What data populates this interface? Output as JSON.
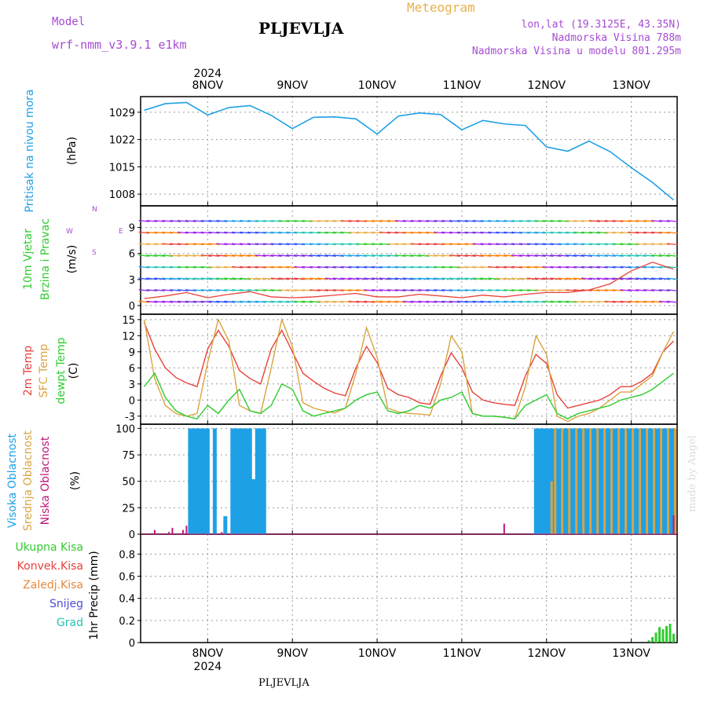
{
  "header": {
    "model_label": "Model",
    "model_name": "wrf-nmm_v3.9.1  e1km",
    "station": "PLJEVLJA",
    "product": "Meteogram",
    "lonlat": "lon,lat (19.3125E, 43.35N)",
    "elevation": "Nadmorska Visina 788m",
    "model_elevation": "Nadmorska Visina u modelu 801.295m",
    "year": "2024",
    "footer_station": "PLJEVLJA",
    "watermark": "made by Angel"
  },
  "colors": {
    "pressure": "#1ea0e6",
    "temp2m": "#e8413c",
    "sfc_temp": "#d9a441",
    "dewpt": "#2ecc2e",
    "cloud_high": "#1ea0e6",
    "cloud_mid": "#d9a441",
    "cloud_low": "#c0157a",
    "precip": "#2ecc2e",
    "title_purple": "#a64bd4",
    "meteogram_orange": "#e8b04a"
  },
  "chart_data": [
    {
      "type": "line",
      "panel": "pressure",
      "ylabel": [
        "Pritisak  na  nivou  mora",
        "(hPa)"
      ],
      "yticks": [
        1008,
        1015,
        1022,
        1029
      ],
      "ylim": [
        1005,
        1033
      ],
      "x_days": [
        "8NOV",
        "9NOV",
        "10NOV",
        "11NOV",
        "12NOV",
        "13NOV"
      ],
      "x_hours": [
        -6,
        0,
        6,
        12,
        18,
        24,
        30,
        36,
        42,
        48,
        54,
        60,
        66,
        72,
        78,
        84,
        90,
        96,
        102,
        108,
        114,
        120,
        126,
        132,
        138,
        144
      ],
      "series": [
        {
          "values": [
            1029.5,
            1031.2,
            1031.5,
            1028.3,
            1030.2,
            1030.7,
            1028.2,
            1024.8,
            1027.7,
            1027.8,
            1027.3,
            1023.4,
            1028.0,
            1028.8,
            1028.4,
            1024.5,
            1026.9,
            1026.0,
            1025.6,
            1020.1,
            1019.0,
            1021.6,
            1018.9,
            1014.8,
            1011.0,
            1006.5
          ]
        }
      ],
      "grid": true
    },
    {
      "type": "line",
      "panel": "wind",
      "ylabel": [
        "10m  Vjetar",
        "Brzina  i  Pravac",
        "(m/s)"
      ],
      "compass": [
        "N",
        "E",
        "W",
        "S"
      ],
      "yticks": [
        0,
        3,
        6,
        9
      ],
      "ylim": [
        -1,
        11.5
      ],
      "x_hours": [
        -6,
        0,
        6,
        12,
        18,
        24,
        30,
        36,
        42,
        48,
        54,
        60,
        66,
        72,
        78,
        84,
        90,
        96,
        102,
        108,
        114,
        120,
        126,
        132,
        138,
        144
      ],
      "series": [
        {
          "values": [
            0.8,
            1.1,
            1.5,
            0.9,
            1.3,
            1.6,
            1.0,
            0.9,
            1.0,
            1.2,
            1.4,
            1.0,
            1.0,
            1.3,
            1.1,
            0.9,
            1.2,
            1.0,
            1.3,
            1.5,
            1.5,
            1.8,
            2.5,
            4.0,
            5.0,
            4.2
          ]
        }
      ],
      "grid": true
    },
    {
      "type": "line",
      "panel": "temperature",
      "ylabel": [
        "2m  Temp",
        "SFC  Temp",
        "dewpt  Temp",
        "(C)"
      ],
      "yticks": [
        -3,
        0,
        3,
        6,
        9,
        12,
        15
      ],
      "ylim": [
        -4.5,
        16
      ],
      "x_hours": [
        -6,
        -3,
        0,
        3,
        6,
        9,
        12,
        15,
        18,
        21,
        24,
        27,
        30,
        33,
        36,
        39,
        42,
        45,
        48,
        51,
        54,
        57,
        60,
        63,
        66,
        69,
        72,
        75,
        78,
        81,
        84,
        87,
        90,
        93,
        96,
        99,
        102,
        105,
        108,
        111,
        114,
        117,
        120,
        123,
        126,
        129,
        132,
        135,
        138,
        141,
        144
      ],
      "series": [
        {
          "name": "2m Temp",
          "values": [
            14.5,
            9.5,
            6,
            4.2,
            3.2,
            2.5,
            9.5,
            13,
            10,
            5.5,
            4,
            3,
            9.5,
            13,
            9,
            5,
            3.5,
            2.2,
            1.3,
            0.8,
            6,
            10,
            7,
            2.2,
            1,
            0.5,
            -0.5,
            -0.8,
            4.5,
            8.8,
            6,
            1.5,
            0,
            -0.5,
            -0.8,
            -1,
            4.5,
            8.5,
            6.8,
            1,
            -1.5,
            -1,
            -0.5,
            0,
            1,
            2.5,
            2.5,
            3.5,
            5,
            9,
            11
          ]
        },
        {
          "name": "SFC Temp",
          "values": [
            15,
            4,
            -1,
            -2.5,
            -3,
            -2.5,
            7,
            15,
            11,
            -1,
            -2,
            -2.5,
            6,
            15,
            10,
            -0.5,
            -1.5,
            -2,
            -2.4,
            -1.5,
            5,
            13.5,
            8,
            -1.5,
            -2.2,
            -2.5,
            -2.6,
            -2.8,
            3,
            12,
            9,
            -2.5,
            -3,
            -3,
            -3.2,
            -3.5,
            2.5,
            12,
            8.5,
            -3,
            -4,
            -3,
            -2.5,
            -1.5,
            0,
            1.5,
            1.5,
            3,
            4.5,
            9,
            12.8
          ]
        },
        {
          "name": "dewpt Temp",
          "values": [
            2.5,
            5,
            0.5,
            -2,
            -3,
            -3.5,
            -1,
            -2.5,
            0,
            2,
            -2,
            -2.5,
            -1,
            3,
            2,
            -2,
            -3,
            -2.5,
            -2,
            -1.5,
            0,
            1,
            1.5,
            -2,
            -2.5,
            -2,
            -1,
            -1.5,
            0,
            0.5,
            1.5,
            -2.5,
            -3,
            -3,
            -3.2,
            -3.5,
            -1,
            0,
            1,
            -2.5,
            -3.5,
            -2.5,
            -2,
            -1.5,
            -1,
            0,
            0.5,
            1,
            2,
            3.5,
            5
          ]
        }
      ],
      "grid": true
    },
    {
      "type": "bar",
      "panel": "clouds",
      "ylabel": [
        "Visoka  Oblacnost",
        "Srednja  Oblacnost",
        "Niska  Oblacnost",
        "(%)"
      ],
      "yticks": [
        0,
        25,
        50,
        75,
        100
      ],
      "ylim": [
        0,
        104
      ],
      "series": [
        {
          "name": "Visoka Oblacnost",
          "x_hours": [
            7,
            8,
            9,
            10,
            11,
            12,
            14,
            17,
            19,
            20,
            21,
            22,
            23,
            24,
            25,
            26,
            27,
            28,
            105,
            106,
            107,
            108,
            109,
            110,
            111,
            112,
            113,
            114,
            115,
            116,
            117,
            118,
            119,
            120,
            121,
            122,
            123,
            124,
            125,
            126,
            127,
            128,
            129,
            130,
            131,
            132,
            133,
            134,
            135,
            136,
            137,
            138,
            139,
            140,
            141,
            142,
            143,
            144
          ],
          "values": [
            100,
            100,
            100,
            100,
            100,
            100,
            100,
            17,
            100,
            100,
            100,
            100,
            100,
            100,
            52,
            100,
            100,
            100,
            100,
            100,
            100,
            100,
            100,
            100,
            100,
            100,
            100,
            100,
            100,
            100,
            100,
            100,
            100,
            100,
            100,
            100,
            100,
            100,
            100,
            100,
            100,
            100,
            100,
            100,
            100,
            100,
            100,
            100,
            100,
            100,
            100,
            100,
            100,
            100,
            100,
            100,
            100,
            100
          ]
        },
        {
          "name": "Srednja Oblacnost",
          "x_hours": [
            109,
            110,
            112,
            114,
            116,
            118,
            120,
            122,
            124,
            126,
            128,
            130,
            132,
            134,
            136,
            138,
            140,
            142,
            144
          ],
          "values": [
            50,
            100,
            100,
            100,
            100,
            100,
            100,
            100,
            100,
            100,
            100,
            100,
            100,
            100,
            100,
            100,
            100,
            100,
            100
          ]
        },
        {
          "name": "Niska Oblacnost",
          "x_hours": [
            -3,
            1,
            2,
            5,
            6,
            16,
            48,
            72,
            96,
            120,
            144
          ],
          "values": [
            4,
            2,
            6,
            4,
            8,
            2,
            0,
            0,
            10,
            0,
            18
          ]
        }
      ],
      "grid": true
    },
    {
      "type": "bar",
      "panel": "precip",
      "ylabel": [
        "1hr  Precip  (mm)"
      ],
      "legend": [
        "Ukupna  Kisa",
        "Konvek.Kisa",
        "Zaledj.Kisa",
        "Snijeg",
        "Grad"
      ],
      "legend_colors": [
        "#2ecc2e",
        "#e8413c",
        "#e8883a",
        "#4b4bd9",
        "#22c5b5"
      ],
      "yticks": [
        0,
        0.2,
        0.4,
        0.6,
        0.8
      ],
      "ylim": [
        0,
        0.98
      ],
      "series": [
        {
          "name": "Ukupna Kisa",
          "x_hours": [
            137,
            138,
            139,
            140,
            141,
            142,
            143,
            144
          ],
          "values": [
            0.02,
            0.05,
            0.09,
            0.14,
            0.12,
            0.15,
            0.17,
            0.08
          ]
        }
      ],
      "grid": true
    }
  ]
}
